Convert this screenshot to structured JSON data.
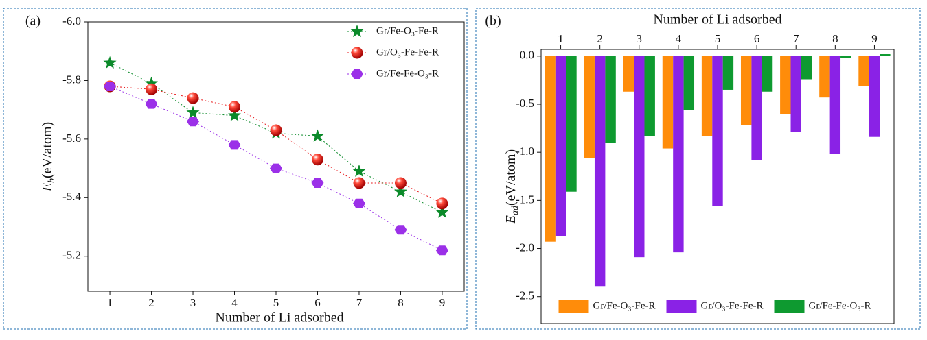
{
  "chart_data": [
    {
      "type": "line",
      "panel_label": "(a)",
      "xlabel": "Number of Li adsorbed",
      "ylabel": {
        "symbol": "E",
        "subscript": "b",
        "unit": "(eV/atom)"
      },
      "x": [
        1,
        2,
        3,
        4,
        5,
        6,
        7,
        8,
        9
      ],
      "xlim": [
        0.47,
        9.53
      ],
      "xticks": [
        1,
        2,
        3,
        4,
        5,
        6,
        7,
        8,
        9
      ],
      "ylim": [
        -6.0,
        -5.08
      ],
      "y_inverted": true,
      "yticks": [
        {
          "value": -6,
          "label": "-6.0"
        },
        -5.8,
        -5.6,
        -5.4,
        -5.2
      ],
      "legend": "upper right",
      "series": [
        {
          "name": "Gr/Fe-O₃-Fe-R",
          "color": "#0b8a2a",
          "marker": "star",
          "values": [
            -5.86,
            -5.79,
            -5.69,
            -5.68,
            -5.62,
            -5.61,
            -5.49,
            -5.42,
            -5.35
          ]
        },
        {
          "name": "Gr/O₃-Fe-Fe-R",
          "color": "#e8191b",
          "marker": "circle",
          "values": [
            -5.78,
            -5.77,
            -5.74,
            -5.71,
            -5.63,
            -5.53,
            -5.45,
            -5.45,
            -5.38
          ]
        },
        {
          "name": "Gr/Fe-Fe-O₃-R",
          "color": "#9b30e8",
          "marker": "hexagon",
          "values": [
            -5.78,
            -5.72,
            -5.66,
            -5.58,
            -5.5,
            -5.45,
            -5.38,
            -5.29,
            -5.22
          ]
        }
      ]
    },
    {
      "type": "bar",
      "panel_label": "(b)",
      "xlabel": "Number of Li adsorbed",
      "xaxis_position": "top",
      "ylabel": {
        "symbol": "E",
        "subscript": "ad",
        "unit": "(eV/atom)"
      },
      "categories": [
        "1",
        "2",
        "3",
        "4",
        "5",
        "6",
        "7",
        "8",
        "9"
      ],
      "ylim": [
        -2.78,
        0.07
      ],
      "yticks": [
        {
          "value": 0,
          "label": "0.0"
        },
        -0.5,
        {
          "value": -1,
          "label": "-1.0"
        },
        -1.5,
        {
          "value": -2,
          "label": "-2.0"
        },
        -2.5
      ],
      "legend": "lower center",
      "series": [
        {
          "name": "Gr/Fe-O₃-Fe-R",
          "color": "#ff8c0a",
          "values": [
            -1.93,
            -1.06,
            -0.37,
            -0.96,
            -0.83,
            -0.72,
            -0.6,
            -0.43,
            -0.31
          ]
        },
        {
          "name": "Gr/O₃-Fe-Fe-R",
          "color": "#8a22e6",
          "values": [
            -1.87,
            -2.39,
            -2.09,
            -2.04,
            -1.56,
            -1.08,
            -0.79,
            -1.02,
            -0.84
          ]
        },
        {
          "name": "Gr/Fe-Fe-O₃-R",
          "color": "#0e9a30",
          "values": [
            -1.41,
            -0.9,
            -0.83,
            -0.56,
            -0.35,
            -0.37,
            -0.24,
            -0.02,
            0.02
          ]
        }
      ]
    }
  ]
}
